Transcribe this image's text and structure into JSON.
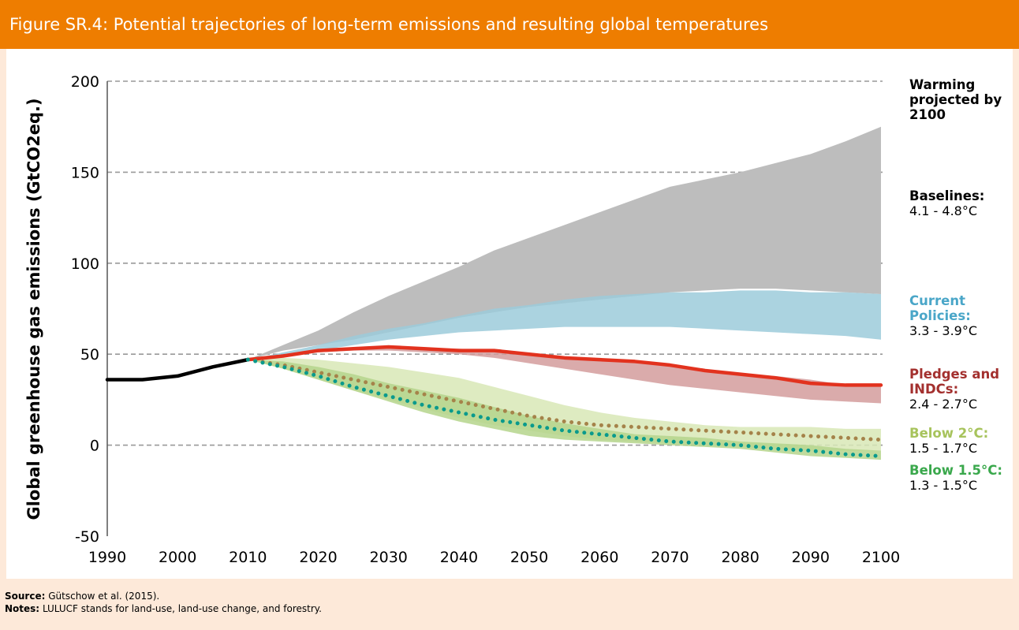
{
  "chart_data": {
    "type": "line",
    "title": "Figure SR.4: Potential trajectories of long-term emissions and resulting global temperatures",
    "ylabel": "Global greenhouse gas emissions (GtCO2eq.)",
    "legend_title": "Warming projected by 2100",
    "x": [
      1990,
      1995,
      2000,
      2005,
      2010,
      2015,
      2020,
      2025,
      2030,
      2035,
      2040,
      2045,
      2050,
      2055,
      2060,
      2065,
      2070,
      2075,
      2080,
      2085,
      2090,
      2095,
      2100
    ],
    "xlim": [
      1990,
      2100
    ],
    "xticks": [
      1990,
      2000,
      2010,
      2020,
      2030,
      2040,
      2050,
      2060,
      2070,
      2080,
      2090,
      2100
    ],
    "ylim": [
      -50,
      200
    ],
    "yticks": [
      -50,
      0,
      50,
      100,
      150,
      200
    ],
    "grid": true,
    "series": [
      {
        "color": "#000000",
        "line_style": "solid",
        "values": [
          36,
          36,
          38,
          43,
          47,
          null,
          null,
          null,
          null,
          null,
          null,
          null,
          null,
          null,
          null,
          null,
          null,
          null,
          null,
          null,
          null,
          null,
          null
        ]
      },
      {
        "name": "Baselines:",
        "range": "4.1 - 4.8°C",
        "color": "#bdbdbd",
        "label_color": "#000000",
        "low": [
          null,
          null,
          null,
          null,
          47,
          52,
          55,
          58,
          62,
          66,
          70,
          73,
          76,
          78,
          80,
          82,
          84,
          85,
          86,
          86,
          85,
          84,
          83
        ],
        "high": [
          null,
          null,
          null,
          null,
          47,
          55,
          63,
          73,
          82,
          90,
          98,
          107,
          114,
          121,
          128,
          135,
          142,
          146,
          150,
          155,
          160,
          167,
          175
        ]
      },
      {
        "name": "Current Policies:",
        "range": "3.3 - 3.9°C",
        "color": "#9ccbdb",
        "label_color": "#4aa6c8",
        "low": [
          null,
          null,
          null,
          null,
          47,
          50,
          52,
          55,
          58,
          60,
          62,
          63,
          64,
          65,
          65,
          65,
          65,
          64,
          63,
          62,
          61,
          60,
          58
        ],
        "high": [
          null,
          null,
          null,
          null,
          47,
          51,
          55,
          60,
          64,
          67,
          71,
          75,
          77,
          80,
          82,
          83,
          84,
          84,
          85,
          85,
          84,
          84,
          83
        ]
      },
      {
        "name": "Pledges and INDCs:",
        "range": "2.4 - 2.7°C",
        "color": "#d49c9c",
        "label_color": "#a3302e",
        "line_color": "#e2321e",
        "line_style": "solid",
        "low": [
          null,
          null,
          null,
          null,
          47,
          49,
          51,
          52,
          52,
          51,
          50,
          48,
          45,
          42,
          39,
          36,
          33,
          31,
          29,
          27,
          25,
          24,
          23
        ],
        "high": [
          null,
          null,
          null,
          null,
          47,
          50,
          52,
          53,
          54,
          53,
          53,
          52,
          50,
          48,
          47,
          46,
          44,
          41,
          39,
          38,
          36,
          33,
          33
        ],
        "values": [
          null,
          null,
          null,
          null,
          47,
          49,
          52,
          53,
          54,
          53,
          52,
          52,
          50,
          48,
          47,
          46,
          44,
          41,
          39,
          37,
          34,
          33,
          33
        ]
      },
      {
        "name": "Below 2°C:",
        "range": "1.5 - 1.7°C",
        "color": "#d8e7b6",
        "label_color": "#a7c35c",
        "line_color": "#a5834a",
        "line_style": "dotted",
        "low": [
          null,
          null,
          null,
          null,
          47,
          42,
          36,
          30,
          25,
          20,
          15,
          11,
          8,
          5,
          3,
          2,
          1,
          0,
          -1,
          -2,
          -3,
          -3,
          -3
        ],
        "high": [
          null,
          null,
          null,
          null,
          47,
          48,
          47,
          45,
          43,
          40,
          37,
          32,
          27,
          22,
          18,
          15,
          13,
          11,
          10,
          10,
          10,
          9,
          9
        ],
        "values": [
          null,
          null,
          null,
          null,
          47,
          44,
          40,
          36,
          32,
          28,
          24,
          20,
          16,
          13,
          11,
          10,
          9,
          8,
          7,
          6,
          5,
          4,
          3
        ]
      },
      {
        "name": "Below 1.5°C:",
        "range": "1.3 - 1.5°C",
        "color": "#b5d58c",
        "label_color": "#3aa84c",
        "line_color": "#0a9a8c",
        "line_style": "dotted",
        "low": [
          null,
          null,
          null,
          null,
          47,
          42,
          36,
          30,
          24,
          18,
          13,
          9,
          5,
          3,
          2,
          1,
          0,
          -1,
          -2,
          -4,
          -6,
          -7,
          -8
        ],
        "high": [
          null,
          null,
          null,
          null,
          47,
          46,
          43,
          39,
          34,
          30,
          26,
          21,
          16,
          12,
          9,
          6,
          5,
          4,
          2,
          1,
          0,
          -2,
          -3
        ],
        "values": [
          null,
          null,
          null,
          null,
          47,
          43,
          38,
          32,
          27,
          22,
          18,
          14,
          11,
          8,
          6,
          4,
          2,
          1,
          0,
          -2,
          -3,
          -5,
          -6
        ]
      }
    ]
  },
  "footer": {
    "source_label": "Source:",
    "source": "Gütschow et al. (2015).",
    "notes_label": "Notes:",
    "notes": "LULUCF stands for land-use, land-use change, and forestry."
  }
}
